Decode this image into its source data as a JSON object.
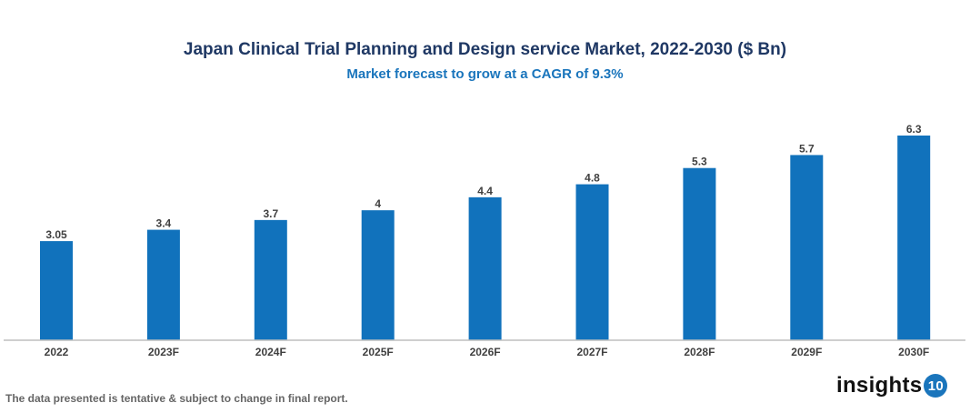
{
  "chart_data": {
    "type": "bar",
    "title": "Japan Clinical Trial Planning and Design service Market, 2022-2030 ($ Bn)",
    "subtitle": "Market forecast to grow at a CAGR of 9.3%",
    "categories": [
      "2022",
      "2023F",
      "2024F",
      "2025F",
      "2026F",
      "2027F",
      "2028F",
      "2029F",
      "2030F"
    ],
    "values": [
      3.05,
      3.4,
      3.7,
      4,
      4.4,
      4.8,
      5.3,
      5.7,
      6.3
    ],
    "data_labels": [
      "3.05",
      "3.4",
      "3.7",
      "4",
      "4.4",
      "4.8",
      "5.3",
      "5.7",
      "6.3"
    ],
    "xlabel": "",
    "ylabel": "",
    "ylim": [
      0,
      6.3
    ],
    "grid": false,
    "bar_color": "#1172bc"
  },
  "footer": {
    "disclaimer": "The data presented is tentative & subject to change in final report."
  },
  "logo": {
    "text": "insights",
    "badge": "10"
  }
}
